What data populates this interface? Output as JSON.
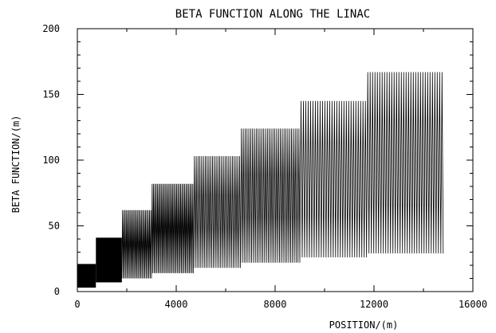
{
  "chart_data": {
    "type": "line",
    "title": "BETA FUNCTION ALONG THE LINAC",
    "xlabel": "POSITION/(m)",
    "ylabel": "BETA FUNCTION/(m)",
    "xlim": [
      0,
      16000
    ],
    "ylim": [
      0,
      200
    ],
    "x_ticks": [
      0,
      4000,
      8000,
      12000,
      16000
    ],
    "y_ticks": [
      0,
      50,
      100,
      150,
      200
    ],
    "grid": false,
    "color": "#000000",
    "series": [
      {
        "segments": [
          {
            "x_start": 0,
            "x_end": 750,
            "beta_min": 3,
            "beta_max": 21
          },
          {
            "x_start": 750,
            "x_end": 1800,
            "beta_min": 7,
            "beta_max": 41
          },
          {
            "x_start": 1800,
            "x_end": 3000,
            "beta_min": 10,
            "beta_max": 62
          },
          {
            "x_start": 3000,
            "x_end": 4700,
            "beta_min": 14,
            "beta_max": 82
          },
          {
            "x_start": 4700,
            "x_end": 6600,
            "beta_min": 18,
            "beta_max": 103
          },
          {
            "x_start": 6600,
            "x_end": 9000,
            "beta_min": 22,
            "beta_max": 124
          },
          {
            "x_start": 9000,
            "x_end": 11700,
            "beta_min": 26,
            "beta_max": 145
          },
          {
            "x_start": 11700,
            "x_end": 14800,
            "beta_min": 29,
            "beta_max": 167
          }
        ]
      }
    ]
  }
}
